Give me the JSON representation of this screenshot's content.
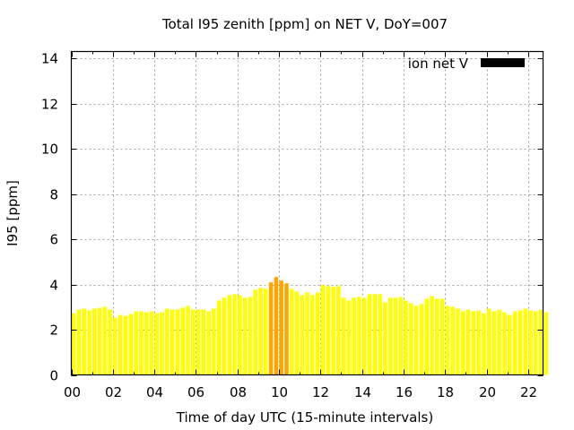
{
  "chart_data": {
    "type": "bar",
    "title": "Total I95 zenith [ppm] on NET V, DoY=007",
    "xlabel": "Time of day UTC (15-minute intervals)",
    "ylabel": "I95 [ppm]",
    "xlim": [
      0,
      22.72
    ],
    "ylim": [
      0,
      14.3
    ],
    "x_interval_hours": 0.25,
    "x_ticks": [
      0,
      2,
      4,
      6,
      8,
      10,
      12,
      14,
      16,
      18,
      20,
      22
    ],
    "x_tick_labels": [
      "00",
      "02",
      "04",
      "06",
      "08",
      "10",
      "12",
      "14",
      "16",
      "18",
      "20",
      "22"
    ],
    "y_ticks": [
      0,
      2,
      4,
      6,
      8,
      10,
      12,
      14
    ],
    "y_tick_labels": [
      "0",
      "2",
      "4",
      "6",
      "8",
      "10",
      "12",
      "14"
    ],
    "grid": true,
    "legend": {
      "label": "ion net V",
      "placement": "top-right",
      "color": "#000000"
    },
    "colors": {
      "normal": "#ffff00",
      "high": "#ffa500",
      "high_threshold": 4
    },
    "values": [
      2.73,
      2.89,
      2.93,
      2.85,
      2.93,
      2.97,
      3.01,
      2.89,
      2.53,
      2.65,
      2.61,
      2.69,
      2.81,
      2.81,
      2.77,
      2.81,
      2.73,
      2.77,
      2.93,
      2.89,
      2.89,
      2.97,
      3.05,
      2.89,
      2.89,
      2.89,
      2.81,
      2.93,
      3.29,
      3.41,
      3.53,
      3.57,
      3.53,
      3.41,
      3.45,
      3.77,
      3.85,
      3.81,
      4.09,
      4.33,
      4.17,
      4.05,
      3.81,
      3.69,
      3.53,
      3.65,
      3.53,
      3.65,
      3.97,
      3.93,
      3.89,
      3.93,
      3.41,
      3.29,
      3.41,
      3.45,
      3.41,
      3.57,
      3.57,
      3.57,
      3.21,
      3.41,
      3.41,
      3.45,
      3.29,
      3.17,
      3.05,
      3.13,
      3.37,
      3.49,
      3.37,
      3.37,
      3.05,
      3.01,
      2.93,
      2.81,
      2.89,
      2.81,
      2.85,
      2.73,
      2.93,
      2.81,
      2.89,
      2.77,
      2.65,
      2.81,
      2.85,
      2.93,
      2.85,
      2.81,
      2.89,
      2.77
    ]
  }
}
